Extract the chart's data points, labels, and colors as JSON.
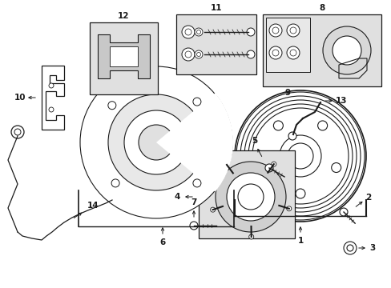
{
  "bg_color": "#ffffff",
  "line_color": "#1a1a1a",
  "box_fill": "#e0e0e0",
  "figsize": [
    4.89,
    3.6
  ],
  "dpi": 100,
  "xlim": [
    0,
    489
  ],
  "ylim": [
    0,
    360
  ]
}
